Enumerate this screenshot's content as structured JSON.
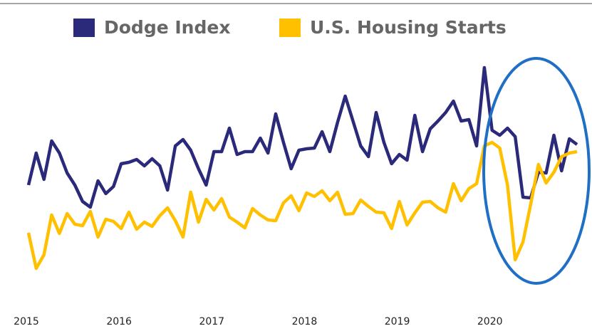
{
  "chart_data": {
    "type": "line",
    "categories": [
      "2015",
      null,
      null,
      null,
      null,
      null,
      null,
      null,
      null,
      null,
      null,
      null,
      "2016",
      null,
      null,
      null,
      null,
      null,
      null,
      null,
      null,
      null,
      null,
      null,
      "2017",
      null,
      null,
      null,
      null,
      null,
      null,
      null,
      null,
      null,
      null,
      null,
      "2018",
      null,
      null,
      null,
      null,
      null,
      null,
      null,
      null,
      null,
      null,
      null,
      "2019",
      null,
      null,
      null,
      null,
      null,
      null,
      null,
      null,
      null,
      null,
      null,
      "2020",
      null,
      null,
      null,
      null,
      null,
      null,
      null,
      null,
      null,
      null,
      null
    ],
    "series": [
      {
        "name": "Dodge Index",
        "color": "#2b2a7a",
        "values": [
          160,
          205,
          168,
          222,
          205,
          177,
          160,
          137,
          129,
          166,
          148,
          158,
          190,
          192,
          196,
          187,
          197,
          187,
          153,
          215,
          224,
          209,
          183,
          160,
          207,
          207,
          240,
          203,
          207,
          207,
          226,
          205,
          260,
          220,
          183,
          209,
          211,
          212,
          235,
          207,
          248,
          285,
          250,
          215,
          200,
          262,
          220,
          190,
          203,
          195,
          258,
          207,
          239,
          250,
          262,
          278,
          250,
          252,
          215,
          325,
          237,
          230,
          240,
          228,
          143,
          142,
          178,
          177,
          230,
          180,
          225,
          217
        ]
      },
      {
        "name": "U.S. Housing Starts",
        "color": "#ffc000",
        "values": [
          93,
          43,
          62,
          118,
          92,
          120,
          105,
          103,
          123,
          87,
          112,
          109,
          99,
          122,
          98,
          108,
          102,
          117,
          128,
          110,
          87,
          150,
          108,
          140,
          125,
          141,
          115,
          108,
          100,
          127,
          118,
          111,
          110,
          135,
          145,
          124,
          149,
          144,
          152,
          138,
          150,
          119,
          120,
          139,
          130,
          122,
          121,
          99,
          137,
          104,
          121,
          136,
          137,
          128,
          122,
          162,
          138,
          155,
          162,
          215,
          220,
          212,
          160,
          55,
          80,
          133,
          189,
          163,
          178,
          200,
          205,
          207
        ]
      }
    ],
    "ylim": [
      0,
      340
    ],
    "legend": "top"
  }
}
